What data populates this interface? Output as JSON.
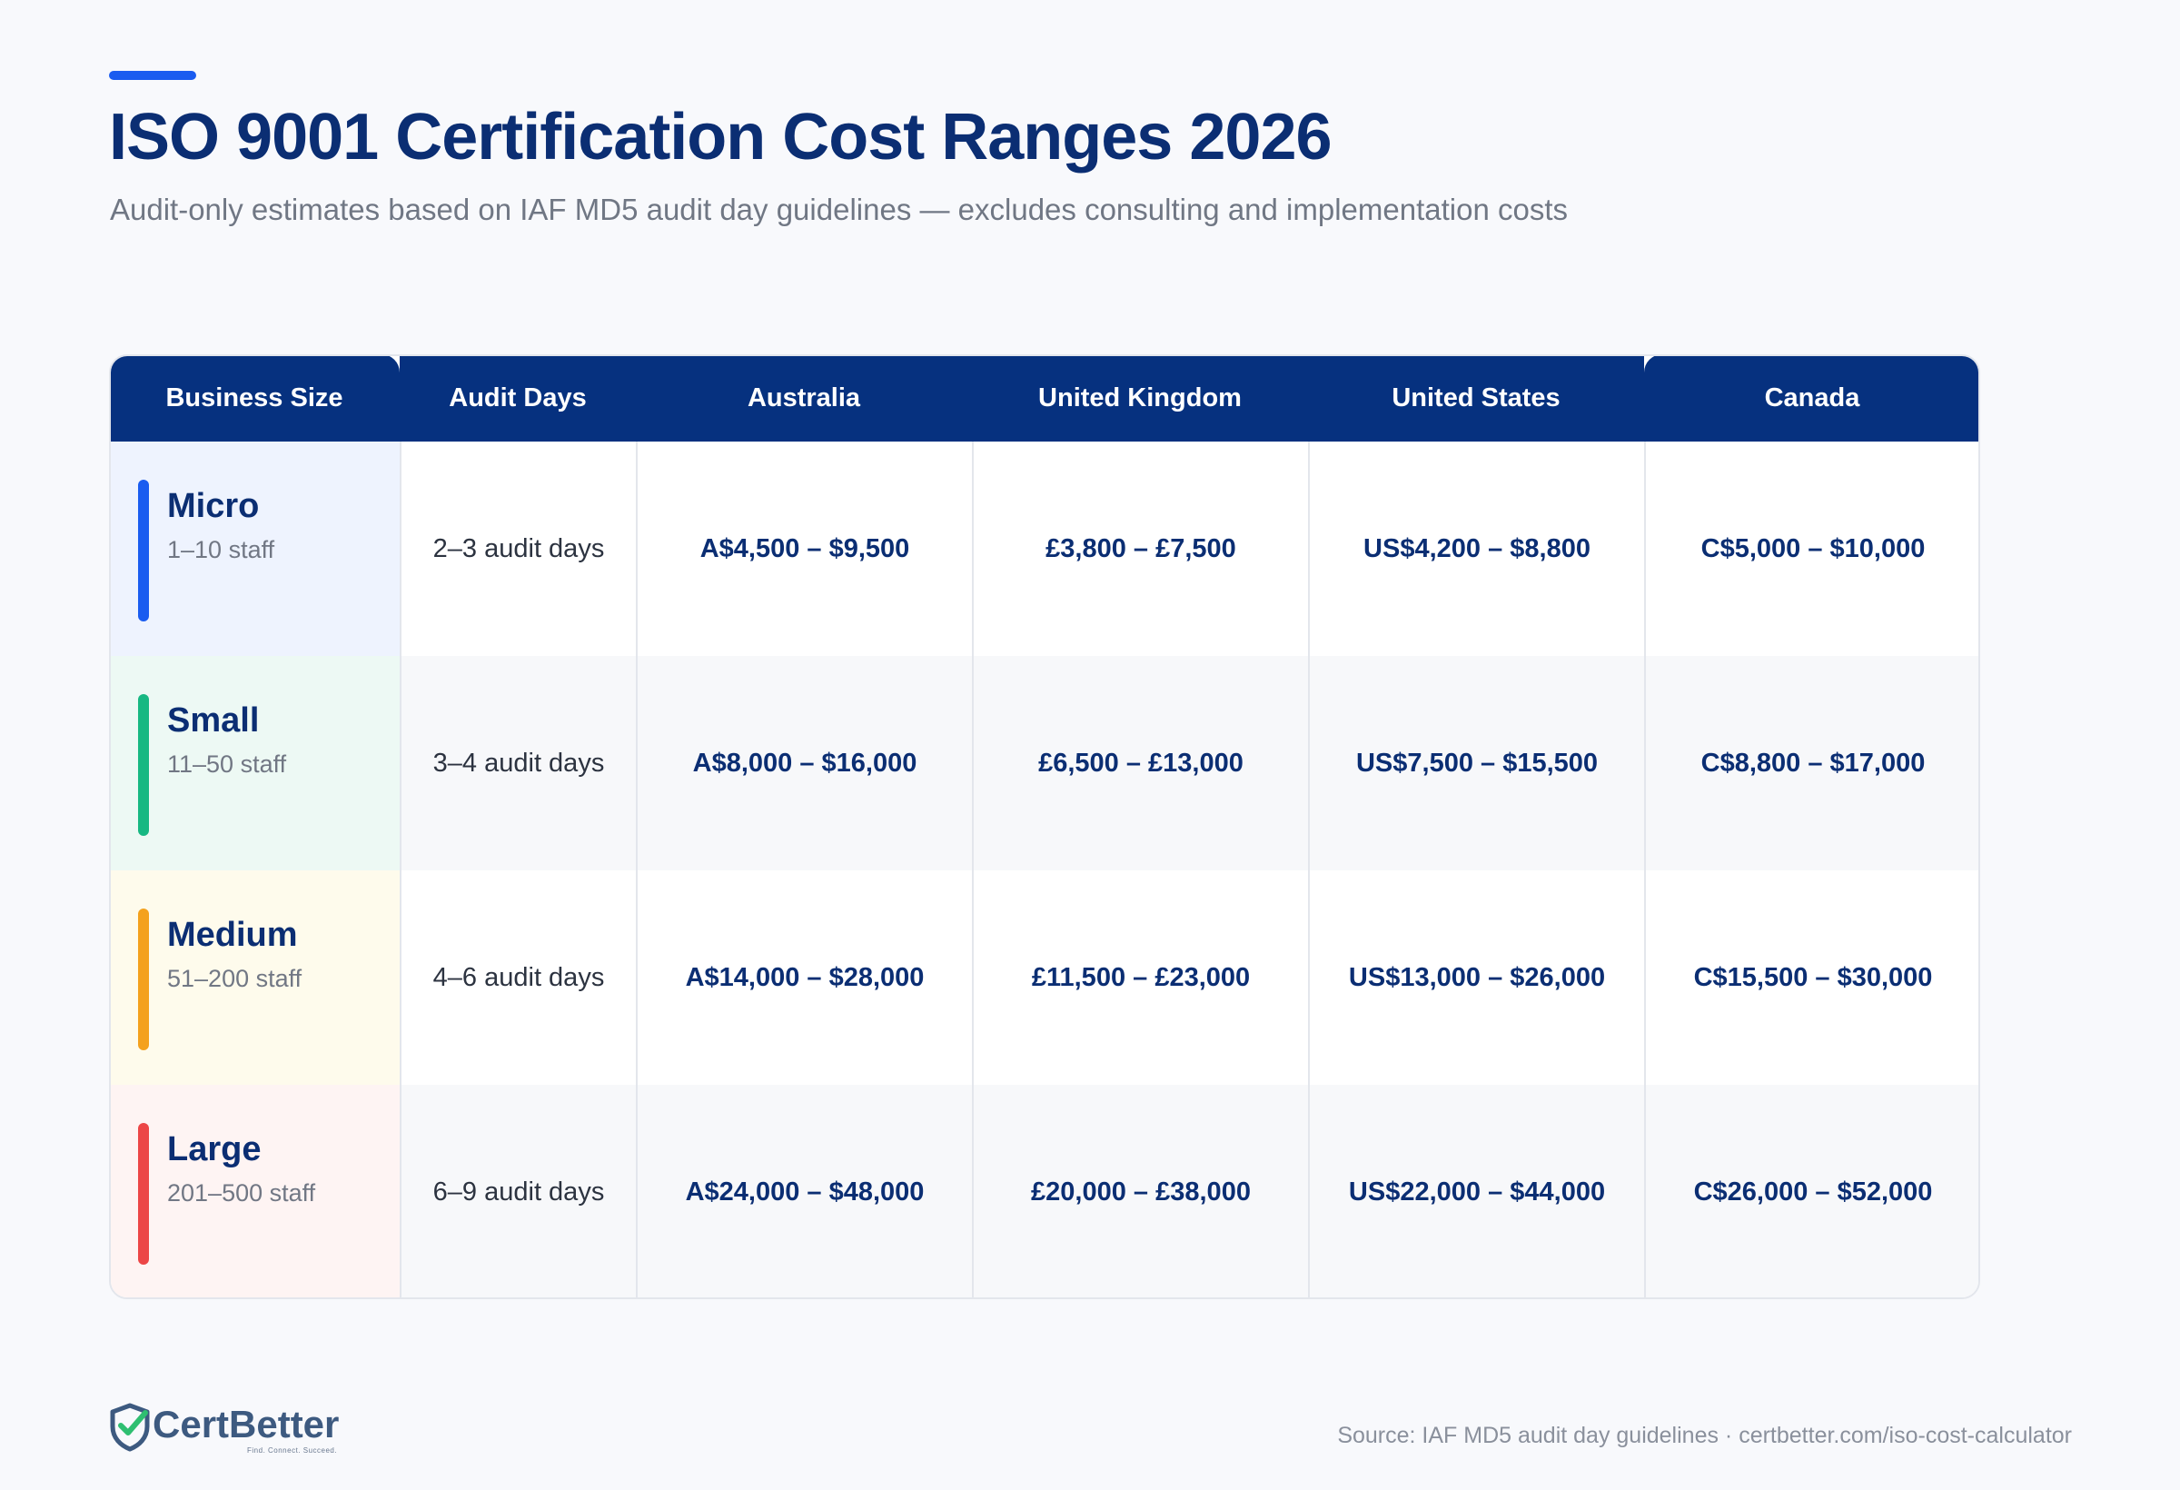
{
  "header": {
    "title": "ISO 9001 Certification Cost Ranges 2026",
    "subtitle": "Audit-only estimates based on IAF MD5 audit day guidelines — excludes consulting and implementation costs"
  },
  "table": {
    "columns": [
      "Business Size",
      "Audit Days",
      "Australia",
      "United Kingdom",
      "United States",
      "Canada"
    ],
    "rows": [
      {
        "size": "Micro",
        "staff": "1–10 staff",
        "color": "#1a5cf0",
        "tint": "#eef3fe",
        "audit_days": "2–3 audit days",
        "australia": "A$4,500 – $9,500",
        "united_kingdom": "£3,800 – £7,500",
        "united_states": "US$4,200 – $8,800",
        "canada": "C$5,000 – $10,000"
      },
      {
        "size": "Small",
        "staff": "11–50 staff",
        "color": "#17b882",
        "tint": "#edf9f4",
        "audit_days": "3–4 audit days",
        "australia": "A$8,000 – $16,000",
        "united_kingdom": "£6,500 – £13,000",
        "united_states": "US$7,500 – $15,500",
        "canada": "C$8,800 – $17,000"
      },
      {
        "size": "Medium",
        "staff": "51–200 staff",
        "color": "#f4a11d",
        "tint": "#fefbec",
        "audit_days": "4–6 audit days",
        "australia": "A$14,000 – $28,000",
        "united_kingdom": "£11,500 – £23,000",
        "united_states": "US$13,000 – $26,000",
        "canada": "C$15,500 – $30,000"
      },
      {
        "size": "Large",
        "staff": "201–500 staff",
        "color": "#ec4646",
        "tint": "#fef4f3",
        "audit_days": "6–9 audit days",
        "australia": "A$24,000 – $48,000",
        "united_kingdom": "£20,000 – £38,000",
        "united_states": "US$22,000 – $44,000",
        "canada": "C$26,000 – $52,000"
      }
    ]
  },
  "footer": {
    "logo_text": "CertBetter",
    "logo_tagline": "Find. Connect. Succeed.",
    "source": "Source: IAF MD5 audit day guidelines · certbetter.com/iso-cost-calculator"
  },
  "colors": {
    "accent": "#1a5cf0",
    "header_bg": "#06317f",
    "title": "#0b2e73"
  },
  "icons": {
    "logo": "shield-check-icon"
  }
}
